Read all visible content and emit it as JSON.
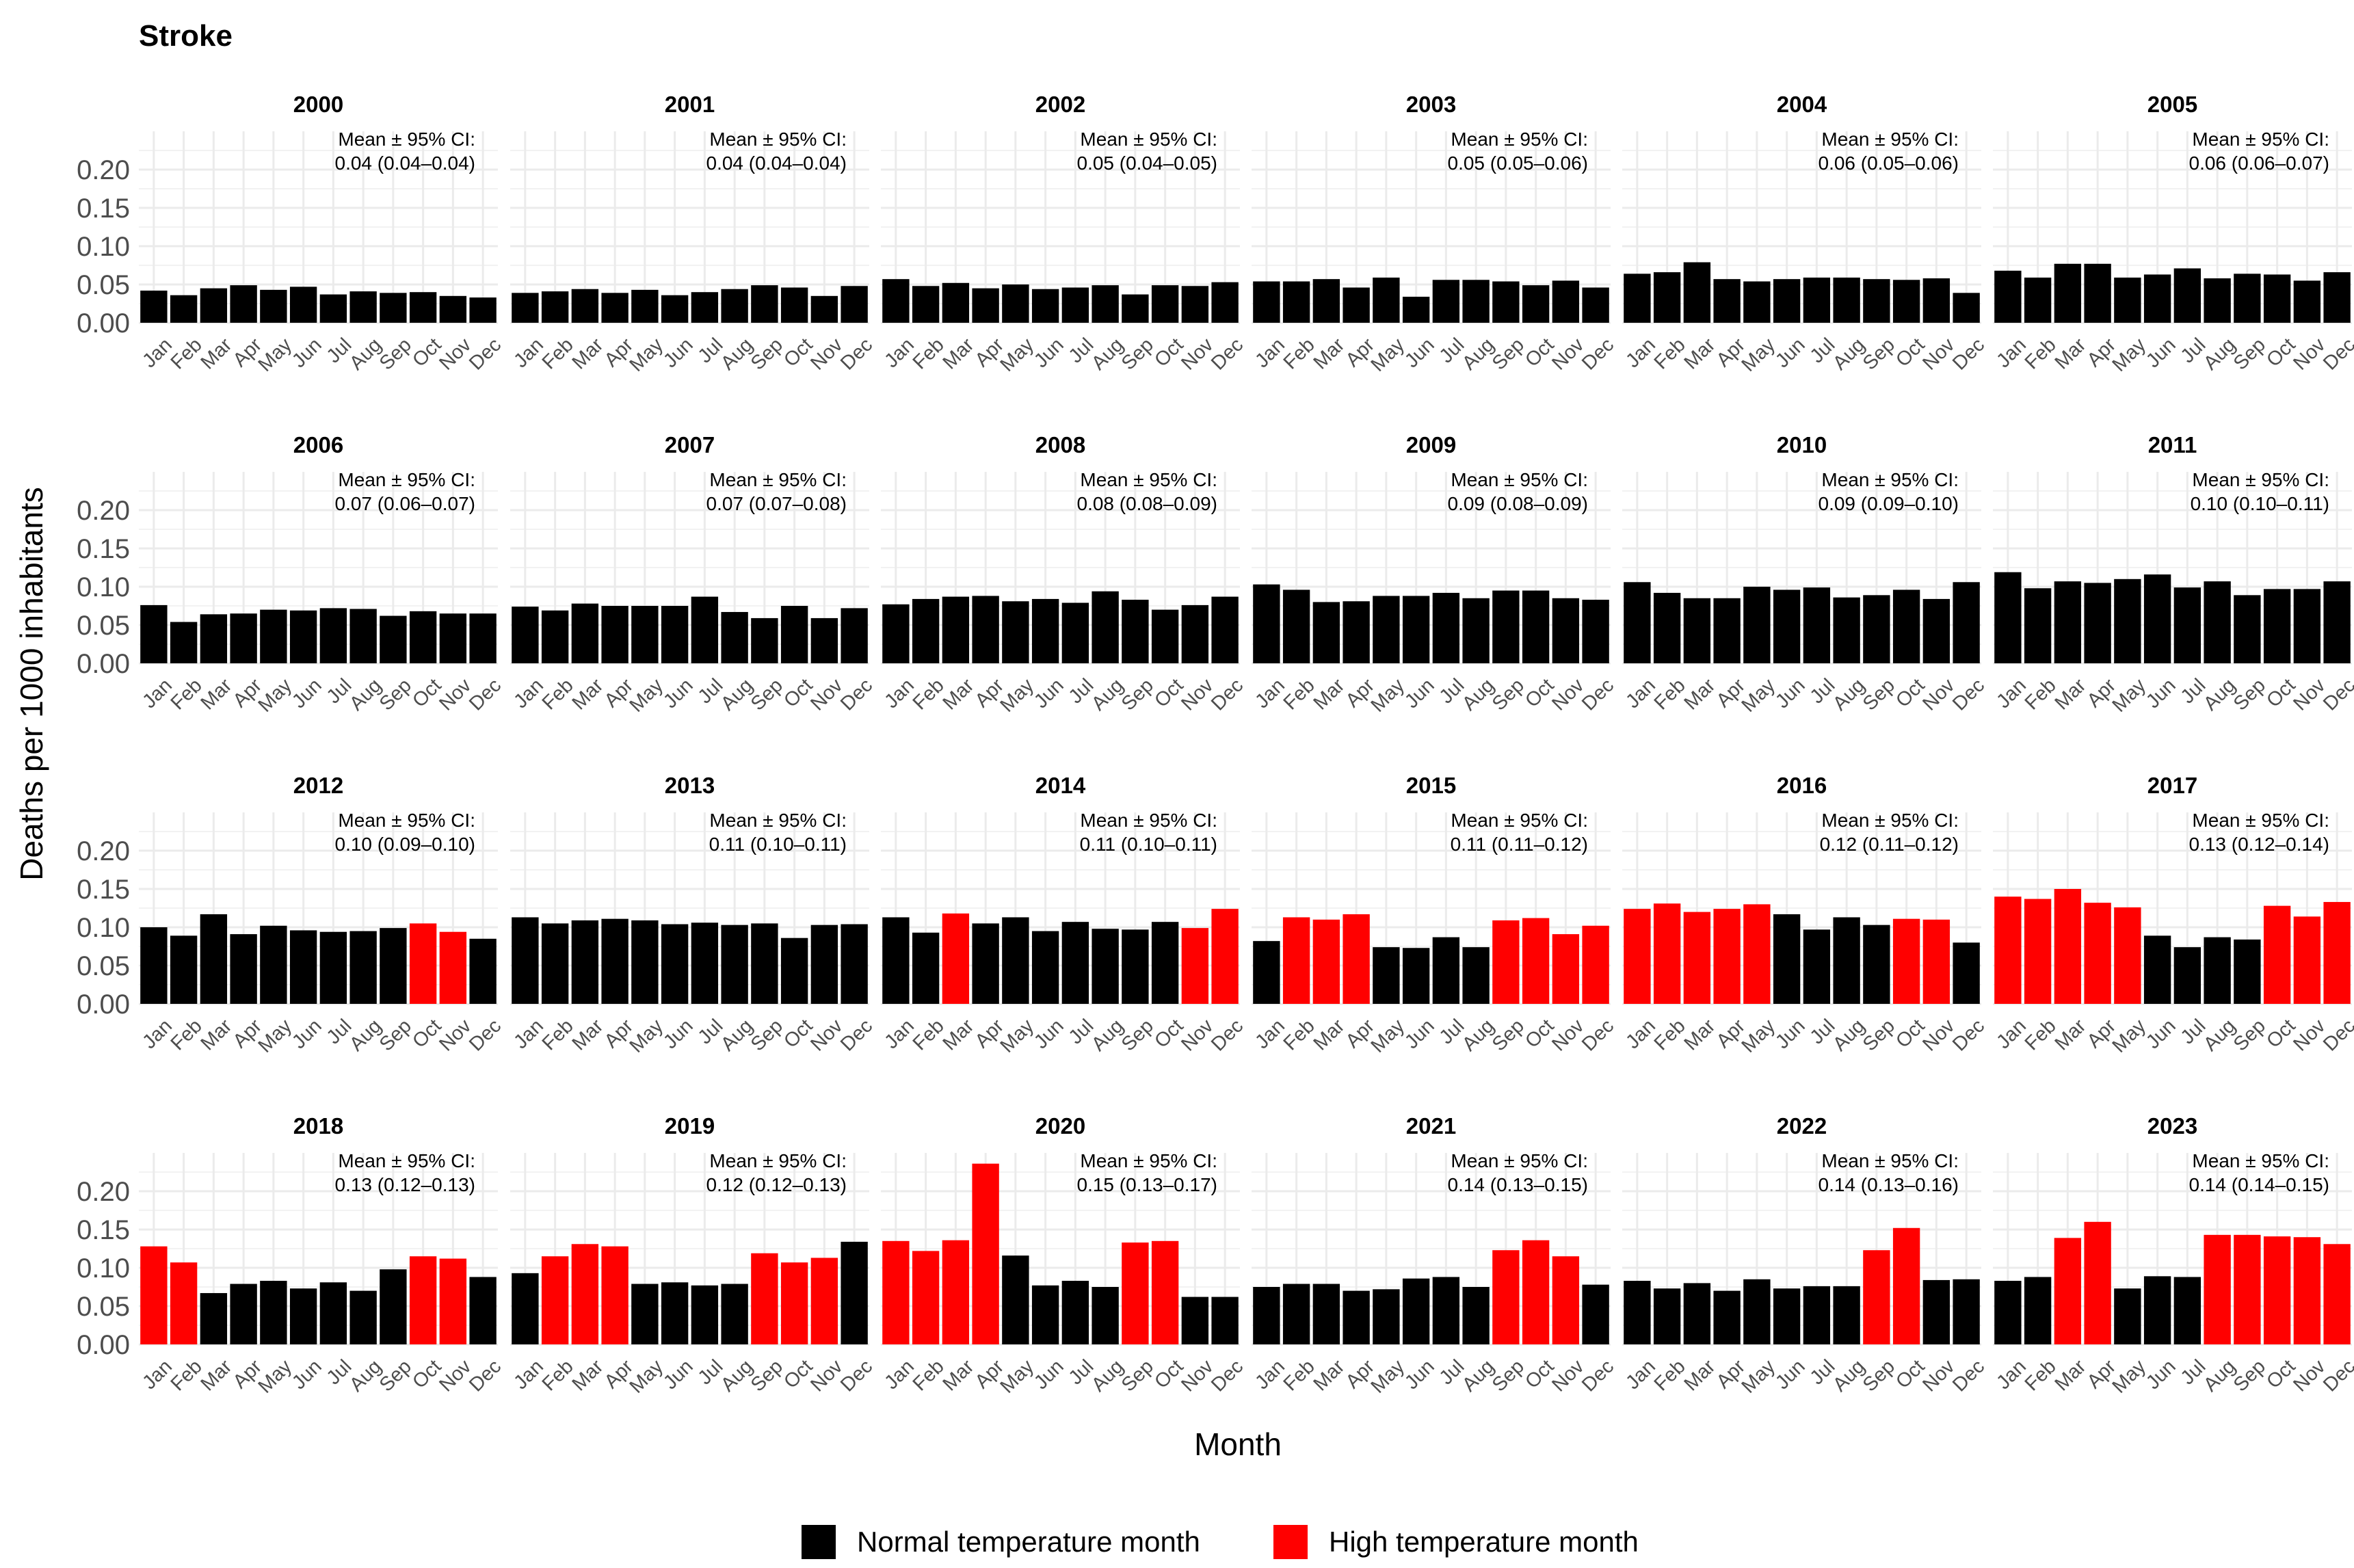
{
  "chart_data": {
    "type": "bar",
    "title": "Stroke",
    "xlabel": "Month",
    "ylabel": "Deaths per 1000 inhabitants",
    "ylim": [
      0,
      0.25
    ],
    "yticks": [
      "0.00",
      "0.05",
      "0.10",
      "0.15",
      "0.20"
    ],
    "months": [
      "Jan",
      "Feb",
      "Mar",
      "Apr",
      "May",
      "Jun",
      "Jul",
      "Aug",
      "Sep",
      "Oct",
      "Nov",
      "Dec"
    ],
    "annotation_label": "Mean ± 95% CI:",
    "colors": {
      "normal": "#000000",
      "high": "#ff0000"
    },
    "legend": [
      {
        "key": "normal",
        "label": "Normal temperature month"
      },
      {
        "key": "high",
        "label": "High temperature month"
      }
    ],
    "panels": [
      {
        "year": "2000",
        "ci": "0.04 (0.04–0.04)",
        "values": [
          0.042,
          0.036,
          0.045,
          0.049,
          0.043,
          0.047,
          0.037,
          0.041,
          0.039,
          0.04,
          0.035,
          0.033
        ],
        "high": []
      },
      {
        "year": "2001",
        "ci": "0.04 (0.04–0.04)",
        "values": [
          0.039,
          0.041,
          0.044,
          0.039,
          0.043,
          0.036,
          0.04,
          0.044,
          0.049,
          0.046,
          0.035,
          0.048
        ],
        "high": []
      },
      {
        "year": "2002",
        "ci": "0.05 (0.04–0.05)",
        "values": [
          0.057,
          0.048,
          0.052,
          0.045,
          0.05,
          0.044,
          0.046,
          0.049,
          0.037,
          0.049,
          0.048,
          0.053
        ],
        "high": []
      },
      {
        "year": "2003",
        "ci": "0.05 (0.05–0.06)",
        "values": [
          0.054,
          0.054,
          0.057,
          0.046,
          0.059,
          0.034,
          0.056,
          0.056,
          0.054,
          0.049,
          0.055,
          0.046
        ],
        "high": []
      },
      {
        "year": "2004",
        "ci": "0.06 (0.05–0.06)",
        "values": [
          0.064,
          0.066,
          0.079,
          0.057,
          0.054,
          0.057,
          0.059,
          0.059,
          0.057,
          0.056,
          0.058,
          0.039
        ],
        "high": []
      },
      {
        "year": "2005",
        "ci": "0.06 (0.06–0.07)",
        "values": [
          0.068,
          0.059,
          0.077,
          0.077,
          0.059,
          0.063,
          0.071,
          0.058,
          0.064,
          0.063,
          0.055,
          0.066
        ],
        "high": []
      },
      {
        "year": "2006",
        "ci": "0.07 (0.06–0.07)",
        "values": [
          0.076,
          0.054,
          0.064,
          0.065,
          0.07,
          0.069,
          0.072,
          0.071,
          0.062,
          0.068,
          0.065,
          0.065
        ],
        "high": []
      },
      {
        "year": "2007",
        "ci": "0.07 (0.07–0.08)",
        "values": [
          0.074,
          0.069,
          0.078,
          0.075,
          0.075,
          0.075,
          0.087,
          0.067,
          0.059,
          0.075,
          0.059,
          0.072
        ],
        "high": []
      },
      {
        "year": "2008",
        "ci": "0.08 (0.08–0.09)",
        "values": [
          0.077,
          0.084,
          0.087,
          0.088,
          0.081,
          0.084,
          0.079,
          0.094,
          0.083,
          0.07,
          0.076,
          0.087
        ],
        "high": []
      },
      {
        "year": "2009",
        "ci": "0.09 (0.08–0.09)",
        "values": [
          0.103,
          0.096,
          0.08,
          0.081,
          0.088,
          0.088,
          0.092,
          0.085,
          0.095,
          0.095,
          0.085,
          0.083
        ],
        "high": []
      },
      {
        "year": "2010",
        "ci": "0.09 (0.09–0.10)",
        "values": [
          0.106,
          0.092,
          0.085,
          0.085,
          0.1,
          0.096,
          0.099,
          0.086,
          0.089,
          0.096,
          0.084,
          0.106
        ],
        "high": []
      },
      {
        "year": "2011",
        "ci": "0.10 (0.10–0.11)",
        "values": [
          0.119,
          0.098,
          0.107,
          0.105,
          0.11,
          0.116,
          0.099,
          0.107,
          0.089,
          0.097,
          0.097,
          0.107
        ],
        "high": []
      },
      {
        "year": "2012",
        "ci": "0.10 (0.09–0.10)",
        "values": [
          0.1,
          0.089,
          0.117,
          0.091,
          0.102,
          0.096,
          0.094,
          0.095,
          0.099,
          0.105,
          0.094,
          0.085
        ],
        "high": [
          9,
          10
        ]
      },
      {
        "year": "2013",
        "ci": "0.11 (0.10–0.11)",
        "values": [
          0.113,
          0.105,
          0.109,
          0.111,
          0.109,
          0.104,
          0.106,
          0.103,
          0.105,
          0.086,
          0.103,
          0.104
        ],
        "high": []
      },
      {
        "year": "2014",
        "ci": "0.11 (0.10–0.11)",
        "values": [
          0.113,
          0.093,
          0.118,
          0.105,
          0.113,
          0.095,
          0.107,
          0.098,
          0.097,
          0.107,
          0.099,
          0.124
        ],
        "high": [
          2,
          10,
          11
        ]
      },
      {
        "year": "2015",
        "ci": "0.11 (0.11–0.12)",
        "values": [
          0.082,
          0.113,
          0.11,
          0.117,
          0.074,
          0.073,
          0.087,
          0.074,
          0.109,
          0.112,
          0.091,
          0.102
        ],
        "high": [
          1,
          2,
          3,
          8,
          9,
          10,
          11
        ]
      },
      {
        "year": "2016",
        "ci": "0.12 (0.11–0.12)",
        "values": [
          0.124,
          0.131,
          0.12,
          0.124,
          0.13,
          0.117,
          0.097,
          0.113,
          0.103,
          0.111,
          0.11,
          0.08
        ],
        "high": [
          0,
          1,
          2,
          3,
          4,
          9,
          10
        ]
      },
      {
        "year": "2017",
        "ci": "0.13 (0.12–0.14)",
        "values": [
          0.14,
          0.137,
          0.15,
          0.132,
          0.126,
          0.089,
          0.074,
          0.087,
          0.084,
          0.128,
          0.114,
          0.133
        ],
        "high": [
          0,
          1,
          2,
          3,
          4,
          9,
          10,
          11
        ]
      },
      {
        "year": "2018",
        "ci": "0.13 (0.12–0.13)",
        "values": [
          0.128,
          0.107,
          0.067,
          0.079,
          0.083,
          0.073,
          0.081,
          0.07,
          0.098,
          0.115,
          0.112,
          0.088
        ],
        "high": [
          0,
          1,
          9,
          10
        ]
      },
      {
        "year": "2019",
        "ci": "0.12 (0.12–0.13)",
        "values": [
          0.093,
          0.115,
          0.131,
          0.128,
          0.079,
          0.081,
          0.077,
          0.079,
          0.119,
          0.107,
          0.113,
          0.134
        ],
        "high": [
          1,
          2,
          3,
          8,
          9,
          10
        ]
      },
      {
        "year": "2020",
        "ci": "0.15 (0.13–0.17)",
        "values": [
          0.135,
          0.122,
          0.136,
          0.236,
          0.116,
          0.077,
          0.083,
          0.075,
          0.133,
          0.135,
          0.062,
          0.062
        ],
        "high": [
          0,
          1,
          2,
          3,
          8,
          9
        ]
      },
      {
        "year": "2021",
        "ci": "0.14 (0.13–0.15)",
        "values": [
          0.075,
          0.079,
          0.079,
          0.07,
          0.072,
          0.086,
          0.088,
          0.075,
          0.123,
          0.136,
          0.115,
          0.078
        ],
        "high": [
          8,
          9,
          10
        ]
      },
      {
        "year": "2022",
        "ci": "0.14 (0.13–0.16)",
        "values": [
          0.083,
          0.073,
          0.08,
          0.07,
          0.085,
          0.073,
          0.076,
          0.076,
          0.123,
          0.152,
          0.084,
          0.085
        ],
        "high": [
          8,
          9
        ]
      },
      {
        "year": "2023",
        "ci": "0.14 (0.14–0.15)",
        "values": [
          0.083,
          0.088,
          0.139,
          0.16,
          0.073,
          0.089,
          0.088,
          0.143,
          0.143,
          0.141,
          0.14,
          0.131
        ],
        "high": [
          2,
          3,
          7,
          8,
          9,
          10,
          11
        ]
      }
    ]
  }
}
